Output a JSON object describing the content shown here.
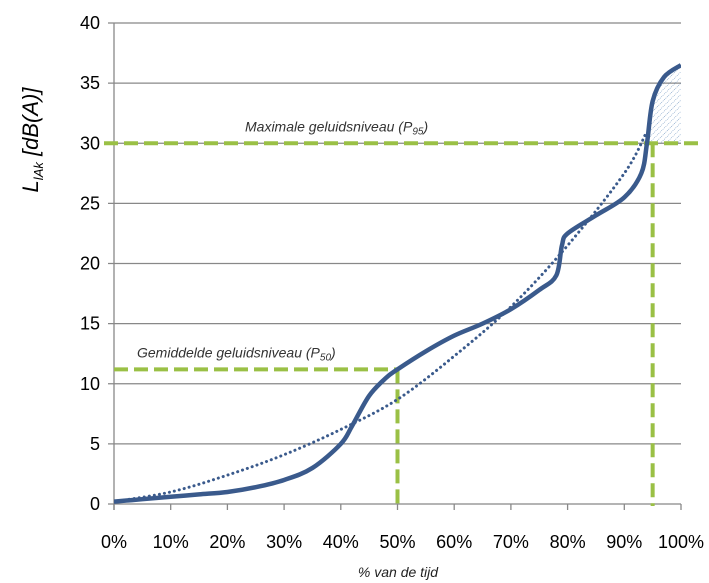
{
  "chart_data": {
    "type": "line",
    "xlabel": "% van de tijd",
    "ylabel": {
      "main": "L",
      "sub": "lAk",
      "unit": " [dB(A)]"
    },
    "xlim": [
      0,
      100
    ],
    "ylim": [
      0,
      40
    ],
    "x_ticks": [
      "0%",
      "10%",
      "20%",
      "30%",
      "40%",
      "50%",
      "60%",
      "70%",
      "80%",
      "90%",
      "100%"
    ],
    "y_ticks": [
      "0",
      "5",
      "10",
      "15",
      "20",
      "25",
      "30",
      "35",
      "40"
    ],
    "grid": "horizontal",
    "series": [
      {
        "style": "solid",
        "color": "#3a5a8c",
        "x": [
          0,
          5,
          10,
          15,
          20,
          25,
          30,
          35,
          40,
          42,
          45,
          48,
          50,
          55,
          60,
          65,
          70,
          75,
          78,
          79,
          80,
          85,
          90,
          93,
          94,
          95,
          97,
          100
        ],
        "y": [
          0.2,
          0.4,
          0.6,
          0.8,
          1.0,
          1.4,
          2.0,
          3.0,
          5.0,
          6.5,
          9.0,
          10.5,
          11.2,
          12.7,
          14.0,
          15.0,
          16.2,
          17.8,
          19.0,
          21.5,
          22.5,
          24.0,
          25.5,
          27.5,
          30.0,
          33.5,
          35.5,
          36.5
        ]
      },
      {
        "style": "dotted",
        "color": "#3a5a8c",
        "x": [
          0,
          10,
          20,
          30,
          40,
          50,
          60,
          70,
          80,
          90,
          94
        ],
        "y": [
          0.2,
          1.0,
          2.4,
          4.1,
          6.2,
          8.7,
          12.3,
          16.4,
          21.5,
          27.5,
          31.0
        ]
      }
    ],
    "annotations": [
      {
        "text": "Gemiddelde geluidsniveau (P",
        "sub": "50",
        "close": ")",
        "x": 50,
        "y": 11.2,
        "color": "#9ac045"
      },
      {
        "text": "Maximale geluidsniveau (P",
        "sub": "95",
        "close": ")",
        "x": 95,
        "y": 30,
        "color": "#9ac045"
      }
    ],
    "hatched_area": {
      "x_from": 95,
      "x_to": 100,
      "y_from": 30,
      "color": "#4a7ab0"
    }
  }
}
